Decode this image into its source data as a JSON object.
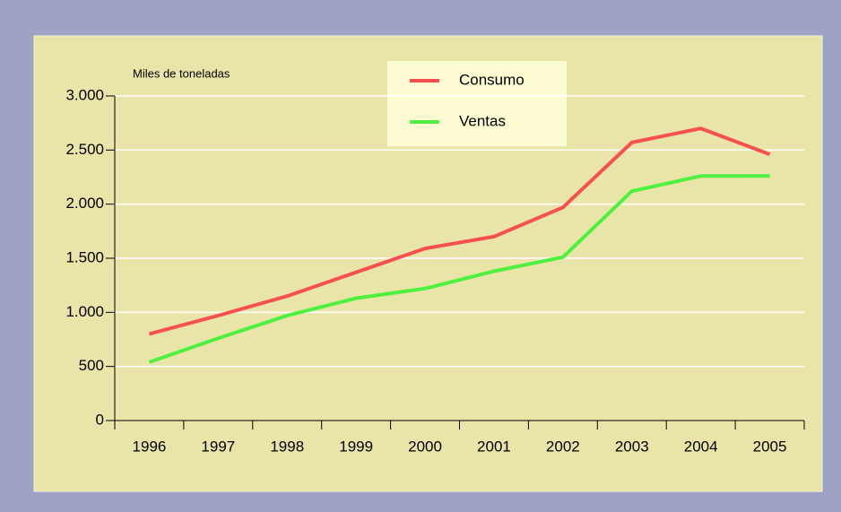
{
  "chart_data": {
    "type": "line",
    "y_label": "Miles de toneladas",
    "categories": [
      "1996",
      "1997",
      "1998",
      "1999",
      "2000",
      "2001",
      "2002",
      "2003",
      "2004",
      "2005"
    ],
    "series": [
      {
        "name": "Consumo",
        "color": "#f85050",
        "values": [
          800,
          970,
          1150,
          1370,
          1590,
          1700,
          1970,
          2570,
          2700,
          2460
        ]
      },
      {
        "name": "Ventas",
        "color": "#50f040",
        "values": [
          540,
          760,
          970,
          1130,
          1220,
          1380,
          1510,
          2120,
          2260,
          2260
        ]
      }
    ],
    "ylim": [
      0,
      3000
    ],
    "yticks": [
      0,
      500,
      {
        "value": 1000,
        "label": "1.000"
      },
      {
        "value": 1500,
        "label": "1.500"
      },
      {
        "value": 2000,
        "label": "2.000"
      },
      {
        "value": 2500,
        "label": "2.500"
      },
      {
        "value": 3000,
        "label": "3.000"
      }
    ],
    "grid": true
  }
}
